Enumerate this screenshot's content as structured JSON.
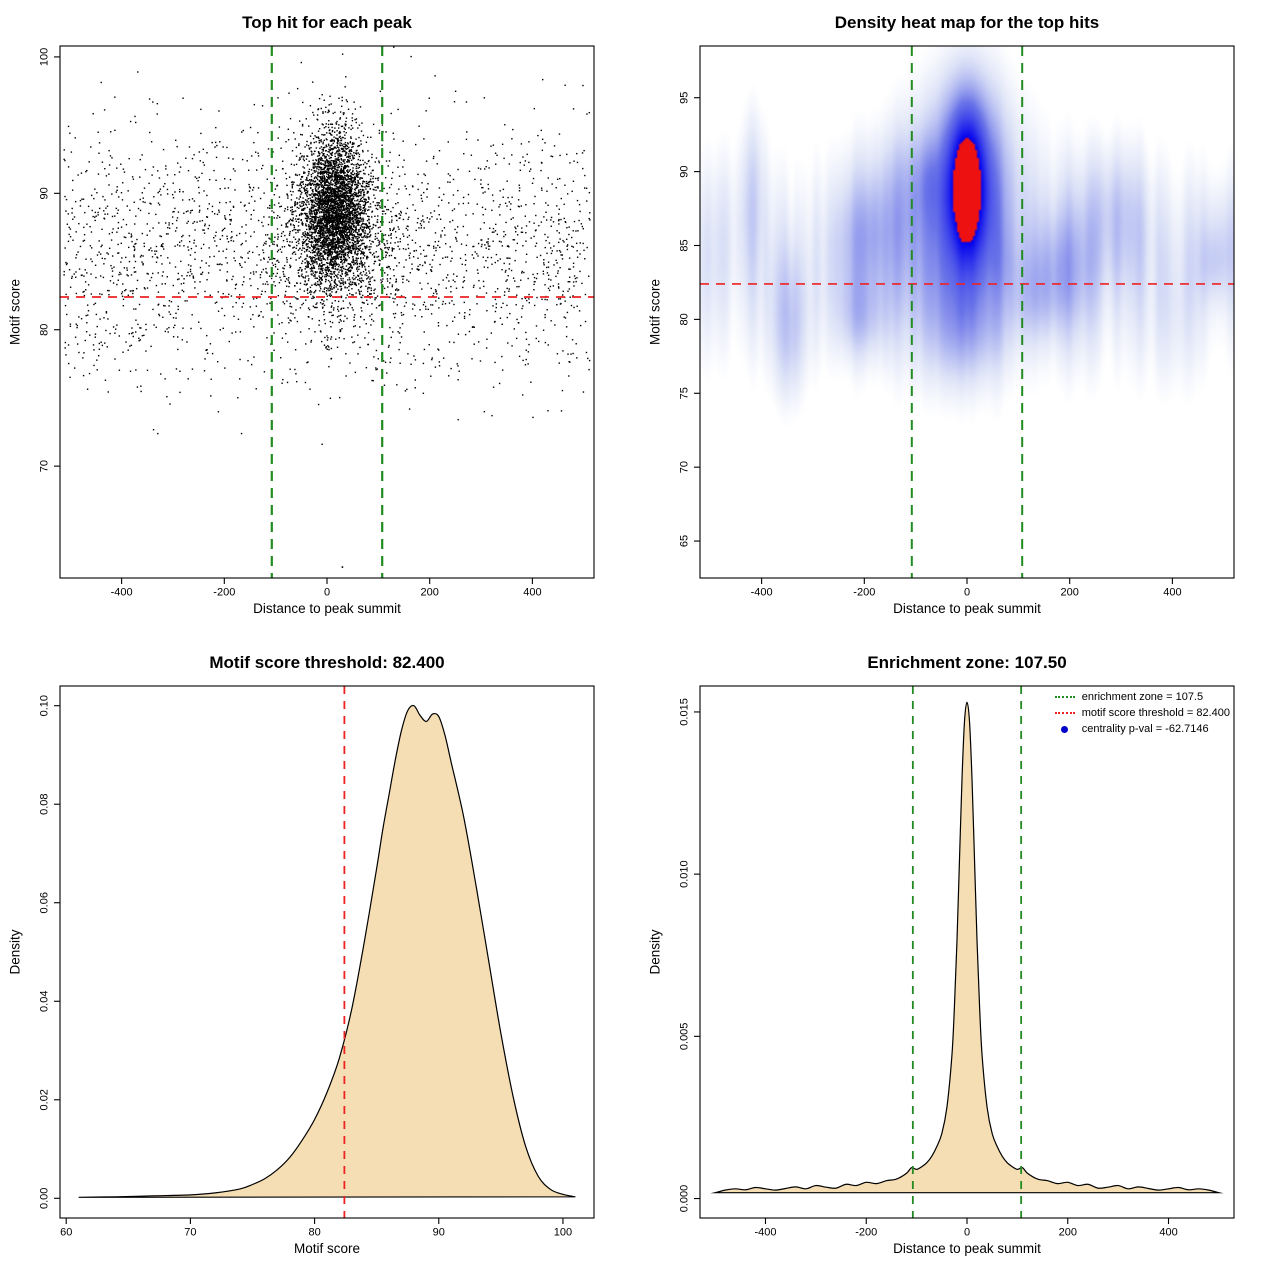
{
  "analysis": {
    "motif_score_threshold": 82.4,
    "enrichment_zone_half_width": 107.5,
    "centrality_p_val": -62.7146
  },
  "colors": {
    "threshold_line": "#ee2222",
    "zone_line": "#228B22",
    "density_fill": "#f5deb3",
    "point_color": "#000000",
    "legend_dot": "#0000cd"
  },
  "chart_data": [
    {
      "id": "top_hits_scatter",
      "type": "scatter",
      "title": "Top hit for each peak",
      "xlabel": "Distance to peak summit",
      "ylabel": "Motif score",
      "xlim": [
        -520,
        520
      ],
      "ylim": [
        61.8,
        100.8
      ],
      "xticks": [
        -400,
        -200,
        0,
        200,
        400
      ],
      "xtick_labels": [
        "-400",
        "-200",
        "0",
        "200",
        "400"
      ],
      "yticks": [
        70,
        80,
        90,
        100
      ],
      "ytick_labels": [
        "70",
        "80",
        "90",
        "100"
      ],
      "point_color": "#000000",
      "seed": 42,
      "hline": {
        "y": 82.4,
        "color": "#ee2222",
        "width": 1.8,
        "dash": [
          9,
          7
        ]
      },
      "vlines": [
        {
          "x": -107.5,
          "color": "#228B22",
          "width": 2.2,
          "dash": [
            10,
            7
          ]
        },
        {
          "x": 107.5,
          "color": "#228B22",
          "width": 2.2,
          "dash": [
            10,
            7
          ]
        }
      ],
      "clusters": [
        {
          "n": 3200,
          "x_mean": 15,
          "x_sd": 30,
          "y_mean": 88.6,
          "y_sd": 2.4
        },
        {
          "n": 1100,
          "x_mean": 15,
          "x_sd": 62,
          "y_mean": 86.8,
          "y_sd": 3.2
        },
        {
          "n": 300,
          "x_mean": 18,
          "x_sd": 32,
          "y_mean": 93.0,
          "y_sd": 2.0
        },
        {
          "n": 2100,
          "x_uniform": [
            -512,
            512
          ],
          "y_mean": 86.3,
          "y_sd": 4.3
        },
        {
          "n": 170,
          "x_uniform": [
            -512,
            512
          ],
          "y_mean": 78.6,
          "y_sd": 2.2
        }
      ],
      "outliers": [
        [
          30,
          62.6
        ]
      ]
    },
    {
      "id": "density_heatmap",
      "type": "heatmap",
      "title": "Density heat map for the top hits",
      "xlabel": "Distance to peak summit",
      "ylabel": "Motif score",
      "xlim": [
        -520,
        520
      ],
      "ylim": [
        62.5,
        98.5
      ],
      "xticks": [
        -400,
        -200,
        0,
        200,
        400
      ],
      "xtick_labels": [
        "-400",
        "-200",
        "0",
        "200",
        "400"
      ],
      "yticks": [
        65,
        70,
        75,
        80,
        85,
        90,
        95
      ],
      "ytick_labels": [
        "65",
        "70",
        "75",
        "80",
        "85",
        "90",
        "95"
      ],
      "seed": 11,
      "hline": {
        "y": 82.4,
        "color": "#ee2222",
        "width": 1.6,
        "dash": [
          9,
          7
        ]
      },
      "vlines": [
        {
          "x": -107.5,
          "color": "#228B22",
          "width": 2.0,
          "dash": [
            10,
            7
          ]
        },
        {
          "x": 107.5,
          "color": "#228B22",
          "width": 2.0,
          "dash": [
            10,
            7
          ]
        }
      ],
      "kernels": [
        {
          "a": 1.0,
          "x": 0,
          "sx": 24,
          "y": 89.3,
          "sy": 3.1
        },
        {
          "a": 0.55,
          "x": 2,
          "sx": 44,
          "y": 88.2,
          "sy": 4.9
        },
        {
          "a": 0.22,
          "x": 0,
          "sx": 95,
          "y": 87.0,
          "sy": 6.8
        }
      ],
      "band": {
        "a": 0.13,
        "y": 84,
        "sy": 5.6
      },
      "noise_blobs": 30,
      "vmax": 1.82,
      "red_cut": 0.68,
      "palette": {
        "light": "#dde3f7",
        "mid": "#6a74e8",
        "deep": "#0000ee",
        "core": "#ee1111"
      }
    },
    {
      "id": "score_density",
      "type": "area",
      "title": "Motif score threshold: 82.400",
      "xlabel": "Motif score",
      "ylabel": "Density",
      "xlim": [
        59.5,
        102.5
      ],
      "ylim": [
        -0.004,
        0.104
      ],
      "xticks": [
        60,
        70,
        80,
        90,
        100
      ],
      "xtick_labels": [
        "60",
        "70",
        "80",
        "90",
        "100"
      ],
      "yticks": [
        0,
        0.02,
        0.04,
        0.06,
        0.08,
        0.1
      ],
      "ytick_labels": [
        "0.00",
        "0.02",
        "0.04",
        "0.06",
        "0.08",
        "0.10"
      ],
      "fill": "#f5deb3",
      "vlines": [
        {
          "x": 82.4,
          "color": "#ee2222",
          "width": 1.8,
          "dash": [
            8,
            7
          ]
        }
      ],
      "points": [
        [
          61,
          0.0002
        ],
        [
          64,
          0.0003
        ],
        [
          67,
          0.0005
        ],
        [
          70,
          0.0007
        ],
        [
          72,
          0.0011
        ],
        [
          74,
          0.0019
        ],
        [
          75,
          0.0028
        ],
        [
          76,
          0.004
        ],
        [
          77,
          0.0058
        ],
        [
          78,
          0.0083
        ],
        [
          79,
          0.0118
        ],
        [
          80,
          0.016
        ],
        [
          81,
          0.0215
        ],
        [
          82,
          0.0285
        ],
        [
          83,
          0.0385
        ],
        [
          84,
          0.052
        ],
        [
          85,
          0.067
        ],
        [
          85.5,
          0.075
        ],
        [
          86,
          0.082
        ],
        [
          86.5,
          0.089
        ],
        [
          87,
          0.095
        ],
        [
          87.5,
          0.099
        ],
        [
          88,
          0.1
        ],
        [
          88.5,
          0.098
        ],
        [
          89,
          0.0968
        ],
        [
          89.5,
          0.0983
        ],
        [
          90,
          0.0978
        ],
        [
          90.5,
          0.094
        ],
        [
          91,
          0.0885
        ],
        [
          92,
          0.0775
        ],
        [
          93,
          0.0635
        ],
        [
          94,
          0.0485
        ],
        [
          95,
          0.0335
        ],
        [
          96,
          0.0205
        ],
        [
          97,
          0.0105
        ],
        [
          98,
          0.0045
        ],
        [
          99,
          0.0018
        ],
        [
          100,
          0.0008
        ],
        [
          101,
          0.0003
        ]
      ]
    },
    {
      "id": "distance_density",
      "type": "area",
      "title": "Enrichment zone: 107.50",
      "xlabel": "Distance to peak summit",
      "ylabel": "Density",
      "xlim": [
        -530,
        530
      ],
      "ylim": [
        -0.0006,
        0.0158
      ],
      "xticks": [
        -400,
        -200,
        0,
        200,
        400
      ],
      "xtick_labels": [
        "-400",
        "-200",
        "0",
        "200",
        "400"
      ],
      "yticks": [
        0,
        0.005,
        0.01,
        0.015
      ],
      "ytick_labels": [
        "0.000",
        "0.005",
        "0.010",
        "0.015"
      ],
      "fill": "#f5deb3",
      "vlines": [
        {
          "x": -107.5,
          "color": "#228B22",
          "width": 1.8,
          "dash": [
            8,
            7
          ]
        },
        {
          "x": 107.5,
          "color": "#228B22",
          "width": 1.8,
          "dash": [
            8,
            7
          ]
        }
      ],
      "points": [
        [
          -500,
          0.00018
        ],
        [
          -480,
          0.00026
        ],
        [
          -460,
          0.0003
        ],
        [
          -440,
          0.00027
        ],
        [
          -420,
          0.00034
        ],
        [
          -400,
          0.0003
        ],
        [
          -380,
          0.00026
        ],
        [
          -360,
          0.00031
        ],
        [
          -340,
          0.00036
        ],
        [
          -320,
          0.0003
        ],
        [
          -300,
          0.0004
        ],
        [
          -280,
          0.00035
        ],
        [
          -260,
          0.00032
        ],
        [
          -240,
          0.00044
        ],
        [
          -220,
          0.0004
        ],
        [
          -200,
          0.0005
        ],
        [
          -180,
          0.00046
        ],
        [
          -160,
          0.00055
        ],
        [
          -140,
          0.0006
        ],
        [
          -120,
          0.00078
        ],
        [
          -110,
          0.00095
        ],
        [
          -100,
          0.0009
        ],
        [
          -90,
          0.00098
        ],
        [
          -80,
          0.0011
        ],
        [
          -70,
          0.0013
        ],
        [
          -60,
          0.0016
        ],
        [
          -50,
          0.002
        ],
        [
          -40,
          0.0028
        ],
        [
          -30,
          0.0044
        ],
        [
          -25,
          0.0059
        ],
        [
          -20,
          0.0079
        ],
        [
          -15,
          0.0104
        ],
        [
          -10,
          0.0129
        ],
        [
          -5,
          0.0147
        ],
        [
          0,
          0.0153
        ],
        [
          5,
          0.0147
        ],
        [
          10,
          0.0129
        ],
        [
          15,
          0.0104
        ],
        [
          20,
          0.0079
        ],
        [
          25,
          0.0059
        ],
        [
          30,
          0.0044
        ],
        [
          40,
          0.0028
        ],
        [
          50,
          0.002
        ],
        [
          60,
          0.0016
        ],
        [
          70,
          0.0013
        ],
        [
          80,
          0.0011
        ],
        [
          90,
          0.00098
        ],
        [
          100,
          0.0009
        ],
        [
          110,
          0.00095
        ],
        [
          120,
          0.00078
        ],
        [
          140,
          0.0006
        ],
        [
          160,
          0.00055
        ],
        [
          180,
          0.00046
        ],
        [
          200,
          0.0005
        ],
        [
          220,
          0.0004
        ],
        [
          240,
          0.00044
        ],
        [
          260,
          0.00032
        ],
        [
          280,
          0.00035
        ],
        [
          300,
          0.0004
        ],
        [
          320,
          0.0003
        ],
        [
          340,
          0.00036
        ],
        [
          360,
          0.00031
        ],
        [
          380,
          0.00026
        ],
        [
          400,
          0.0003
        ],
        [
          420,
          0.00034
        ],
        [
          440,
          0.00027
        ],
        [
          460,
          0.0003
        ],
        [
          480,
          0.00026
        ],
        [
          500,
          0.00018
        ]
      ],
      "legend": {
        "position": "top-right",
        "items": [
          {
            "label": "enrichment zone = 107.5",
            "symbol": "dotted-line",
            "color": "#228B22"
          },
          {
            "label": "motif score threshold = 82.400",
            "symbol": "dotted-line",
            "color": "#ee2222"
          },
          {
            "label": "centrality p-val = -62.7146",
            "symbol": "dot",
            "color": "#0000cd"
          }
        ]
      }
    }
  ]
}
